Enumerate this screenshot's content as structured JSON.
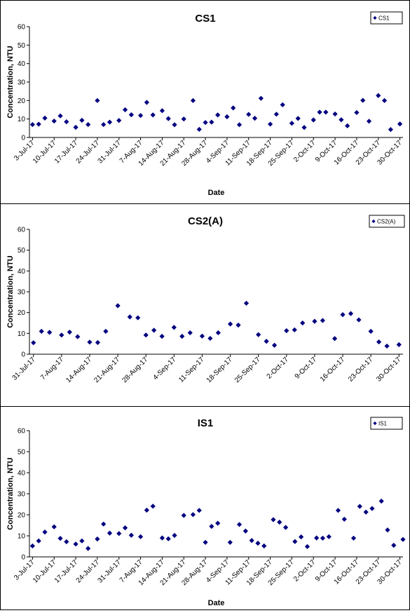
{
  "colors": {
    "marker": "#000080",
    "axis": "#000000",
    "grid": "#c0c0c0",
    "background": "#ffffff"
  },
  "chart_data": [
    {
      "type": "scatter",
      "title": "CS1",
      "xlabel": "Date",
      "ylabel": "Concentration, NTU",
      "ylim": [
        0,
        60
      ],
      "yticks": [
        "0",
        "10",
        "20",
        "30",
        "40",
        "50",
        "60"
      ],
      "xlim": [
        "2017-07-02",
        "2017-10-31"
      ],
      "xticks": [
        {
          "date": "2017-07-03",
          "label": "3-Jul-17"
        },
        {
          "date": "2017-07-10",
          "label": "10-Jul-17"
        },
        {
          "date": "2017-07-17",
          "label": "17-Jul-17"
        },
        {
          "date": "2017-07-24",
          "label": "24-Jul-17"
        },
        {
          "date": "2017-07-31",
          "label": "31-Jul-17"
        },
        {
          "date": "2017-08-07",
          "label": "7-Aug-17"
        },
        {
          "date": "2017-08-14",
          "label": "14-Aug-17"
        },
        {
          "date": "2017-08-21",
          "label": "21-Aug-17"
        },
        {
          "date": "2017-08-28",
          "label": "28-Aug-17"
        },
        {
          "date": "2017-09-04",
          "label": "4-Sep-17"
        },
        {
          "date": "2017-09-11",
          "label": "11-Sep-17"
        },
        {
          "date": "2017-09-18",
          "label": "18-Sep-17"
        },
        {
          "date": "2017-09-25",
          "label": "25-Sep-17"
        },
        {
          "date": "2017-10-02",
          "label": "2-Oct-17"
        },
        {
          "date": "2017-10-09",
          "label": "9-Oct-17"
        },
        {
          "date": "2017-10-16",
          "label": "16-Oct-17"
        },
        {
          "date": "2017-10-23",
          "label": "23-Oct-17"
        },
        {
          "date": "2017-10-30",
          "label": "30-Oct-17"
        }
      ],
      "legend": {
        "position": "top-right",
        "entries": [
          "CS1"
        ]
      },
      "grid": false,
      "series": [
        {
          "name": "CS1",
          "points": [
            {
              "x": "2017-07-03",
              "y": 7
            },
            {
              "x": "2017-07-05",
              "y": 7.2
            },
            {
              "x": "2017-07-07",
              "y": 10.5
            },
            {
              "x": "2017-07-10",
              "y": 8.9
            },
            {
              "x": "2017-07-12",
              "y": 11.7
            },
            {
              "x": "2017-07-14",
              "y": 8.5
            },
            {
              "x": "2017-07-17",
              "y": 5.5
            },
            {
              "x": "2017-07-19",
              "y": 9.3
            },
            {
              "x": "2017-07-21",
              "y": 7
            },
            {
              "x": "2017-07-24",
              "y": 20
            },
            {
              "x": "2017-07-26",
              "y": 7
            },
            {
              "x": "2017-07-28",
              "y": 8.3
            },
            {
              "x": "2017-07-31",
              "y": 9.2
            },
            {
              "x": "2017-08-02",
              "y": 15
            },
            {
              "x": "2017-08-04",
              "y": 12.3
            },
            {
              "x": "2017-08-07",
              "y": 11.9
            },
            {
              "x": "2017-08-09",
              "y": 19
            },
            {
              "x": "2017-08-11",
              "y": 12.2
            },
            {
              "x": "2017-08-14",
              "y": 14.5
            },
            {
              "x": "2017-08-16",
              "y": 10.2
            },
            {
              "x": "2017-08-18",
              "y": 6.9
            },
            {
              "x": "2017-08-21",
              "y": 10
            },
            {
              "x": "2017-08-24",
              "y": 20
            },
            {
              "x": "2017-08-26",
              "y": 4.4
            },
            {
              "x": "2017-08-28",
              "y": 8.1
            },
            {
              "x": "2017-08-30",
              "y": 8.3
            },
            {
              "x": "2017-09-01",
              "y": 12.2
            },
            {
              "x": "2017-09-04",
              "y": 11.2
            },
            {
              "x": "2017-09-06",
              "y": 16
            },
            {
              "x": "2017-09-08",
              "y": 6.9
            },
            {
              "x": "2017-09-11",
              "y": 12.5
            },
            {
              "x": "2017-09-13",
              "y": 10.4
            },
            {
              "x": "2017-09-15",
              "y": 21.2
            },
            {
              "x": "2017-09-18",
              "y": 7.2
            },
            {
              "x": "2017-09-20",
              "y": 12.6
            },
            {
              "x": "2017-09-22",
              "y": 17.7
            },
            {
              "x": "2017-09-25",
              "y": 7.7
            },
            {
              "x": "2017-09-27",
              "y": 10.3
            },
            {
              "x": "2017-09-29",
              "y": 5.4
            },
            {
              "x": "2017-10-02",
              "y": 9.5
            },
            {
              "x": "2017-10-04",
              "y": 13.7
            },
            {
              "x": "2017-10-06",
              "y": 13.7
            },
            {
              "x": "2017-10-09",
              "y": 12.7
            },
            {
              "x": "2017-10-11",
              "y": 9.6
            },
            {
              "x": "2017-10-13",
              "y": 6.3
            },
            {
              "x": "2017-10-16",
              "y": 13.5
            },
            {
              "x": "2017-10-18",
              "y": 20.1
            },
            {
              "x": "2017-10-20",
              "y": 8.8
            },
            {
              "x": "2017-10-23",
              "y": 22.7
            },
            {
              "x": "2017-10-25",
              "y": 20
            },
            {
              "x": "2017-10-27",
              "y": 4.3
            },
            {
              "x": "2017-10-30",
              "y": 7.3
            }
          ]
        }
      ]
    },
    {
      "type": "scatter",
      "title": "CS2(A)",
      "xlabel": "",
      "ylabel": "Concentration, NTU",
      "ylim": [
        0,
        60
      ],
      "yticks": [
        "0",
        "10",
        "20",
        "30",
        "40",
        "50",
        "60"
      ],
      "xlim": [
        "2017-07-30",
        "2017-10-31"
      ],
      "xticks": [
        {
          "date": "2017-07-31",
          "label": "31-Jul-17"
        },
        {
          "date": "2017-08-07",
          "label": "7-Aug-17"
        },
        {
          "date": "2017-08-14",
          "label": "14-Aug-17"
        },
        {
          "date": "2017-08-21",
          "label": "21-Aug-17"
        },
        {
          "date": "2017-08-28",
          "label": "28-Aug-17"
        },
        {
          "date": "2017-09-04",
          "label": "4-Sep-17"
        },
        {
          "date": "2017-09-11",
          "label": "11-Sep-17"
        },
        {
          "date": "2017-09-18",
          "label": "18-Sep-17"
        },
        {
          "date": "2017-09-25",
          "label": "25-Sep-17"
        },
        {
          "date": "2017-10-02",
          "label": "2-Oct-17"
        },
        {
          "date": "2017-10-09",
          "label": "9-Oct-17"
        },
        {
          "date": "2017-10-16",
          "label": "16-Oct-17"
        },
        {
          "date": "2017-10-23",
          "label": "23-Oct-17"
        },
        {
          "date": "2017-10-30",
          "label": "30-Oct-17"
        }
      ],
      "legend": {
        "position": "top-right",
        "entries": [
          "CS2(A)"
        ]
      },
      "grid": false,
      "series": [
        {
          "name": "CS2(A)",
          "points": [
            {
              "x": "2017-07-31",
              "y": 5.5
            },
            {
              "x": "2017-08-02",
              "y": 11
            },
            {
              "x": "2017-08-04",
              "y": 10.5
            },
            {
              "x": "2017-08-07",
              "y": 9.2
            },
            {
              "x": "2017-08-09",
              "y": 10.6
            },
            {
              "x": "2017-08-11",
              "y": 8.4
            },
            {
              "x": "2017-08-14",
              "y": 5.8
            },
            {
              "x": "2017-08-16",
              "y": 5.6
            },
            {
              "x": "2017-08-18",
              "y": 11
            },
            {
              "x": "2017-08-21",
              "y": 23.3
            },
            {
              "x": "2017-08-24",
              "y": 17.9
            },
            {
              "x": "2017-08-26",
              "y": 17.5
            },
            {
              "x": "2017-08-28",
              "y": 9.2
            },
            {
              "x": "2017-08-30",
              "y": 11.5
            },
            {
              "x": "2017-09-01",
              "y": 8.6
            },
            {
              "x": "2017-09-04",
              "y": 12.9
            },
            {
              "x": "2017-09-06",
              "y": 8.6
            },
            {
              "x": "2017-09-08",
              "y": 10.3
            },
            {
              "x": "2017-09-11",
              "y": 8.7
            },
            {
              "x": "2017-09-13",
              "y": 7.6
            },
            {
              "x": "2017-09-15",
              "y": 10.3
            },
            {
              "x": "2017-09-18",
              "y": 14.5
            },
            {
              "x": "2017-09-20",
              "y": 14
            },
            {
              "x": "2017-09-22",
              "y": 24.5
            },
            {
              "x": "2017-09-25",
              "y": 9.4
            },
            {
              "x": "2017-09-27",
              "y": 6.2
            },
            {
              "x": "2017-09-29",
              "y": 4.3
            },
            {
              "x": "2017-10-02",
              "y": 11.3
            },
            {
              "x": "2017-10-04",
              "y": 11.7
            },
            {
              "x": "2017-10-06",
              "y": 15
            },
            {
              "x": "2017-10-09",
              "y": 15.8
            },
            {
              "x": "2017-10-11",
              "y": 16.2
            },
            {
              "x": "2017-10-14",
              "y": 7.5
            },
            {
              "x": "2017-10-16",
              "y": 19
            },
            {
              "x": "2017-10-18",
              "y": 19.5
            },
            {
              "x": "2017-10-20",
              "y": 16.5
            },
            {
              "x": "2017-10-23",
              "y": 11
            },
            {
              "x": "2017-10-25",
              "y": 5.9
            },
            {
              "x": "2017-10-27",
              "y": 3.9
            },
            {
              "x": "2017-10-30",
              "y": 4.6
            }
          ]
        }
      ]
    },
    {
      "type": "scatter",
      "title": "IS1",
      "xlabel": "Date",
      "ylabel": "Concentration, NTU",
      "ylim": [
        0,
        60
      ],
      "yticks": [
        "0",
        "10",
        "20",
        "30",
        "40",
        "50",
        "60"
      ],
      "xlim": [
        "2017-07-02",
        "2017-10-31"
      ],
      "xticks": [
        {
          "date": "2017-07-03",
          "label": "3-Jul-17"
        },
        {
          "date": "2017-07-10",
          "label": "10-Jul-17"
        },
        {
          "date": "2017-07-17",
          "label": "17-Jul-17"
        },
        {
          "date": "2017-07-24",
          "label": "24-Jul-17"
        },
        {
          "date": "2017-07-31",
          "label": "31-Jul-17"
        },
        {
          "date": "2017-08-07",
          "label": "7-Aug-17"
        },
        {
          "date": "2017-08-14",
          "label": "14-Aug-17"
        },
        {
          "date": "2017-08-21",
          "label": "21-Aug-17"
        },
        {
          "date": "2017-08-28",
          "label": "28-Aug-17"
        },
        {
          "date": "2017-09-04",
          "label": "4-Sep-17"
        },
        {
          "date": "2017-09-11",
          "label": "11-Sep-17"
        },
        {
          "date": "2017-09-18",
          "label": "18-Sep-17"
        },
        {
          "date": "2017-09-25",
          "label": "25-Sep-17"
        },
        {
          "date": "2017-10-02",
          "label": "2-Oct-17"
        },
        {
          "date": "2017-10-09",
          "label": "9-Oct-17"
        },
        {
          "date": "2017-10-16",
          "label": "16-Oct-17"
        },
        {
          "date": "2017-10-23",
          "label": "23-Oct-17"
        },
        {
          "date": "2017-10-30",
          "label": "30-Oct-17"
        }
      ],
      "legend": {
        "position": "top-right",
        "entries": [
          "IS1"
        ]
      },
      "grid": false,
      "series": [
        {
          "name": "IS1",
          "points": [
            {
              "x": "2017-07-03",
              "y": 5.2
            },
            {
              "x": "2017-07-05",
              "y": 7.6
            },
            {
              "x": "2017-07-07",
              "y": 11.8
            },
            {
              "x": "2017-07-10",
              "y": 14.3
            },
            {
              "x": "2017-07-12",
              "y": 8.8
            },
            {
              "x": "2017-07-14",
              "y": 7.2
            },
            {
              "x": "2017-07-17",
              "y": 6.1
            },
            {
              "x": "2017-07-19",
              "y": 7.6
            },
            {
              "x": "2017-07-21",
              "y": 4
            },
            {
              "x": "2017-07-24",
              "y": 8.5
            },
            {
              "x": "2017-07-26",
              "y": 15.6
            },
            {
              "x": "2017-07-28",
              "y": 11.3
            },
            {
              "x": "2017-07-31",
              "y": 11.1
            },
            {
              "x": "2017-08-02",
              "y": 13.8
            },
            {
              "x": "2017-08-04",
              "y": 10.3
            },
            {
              "x": "2017-08-07",
              "y": 9.6
            },
            {
              "x": "2017-08-09",
              "y": 22.2
            },
            {
              "x": "2017-08-11",
              "y": 24.1
            },
            {
              "x": "2017-08-14",
              "y": 9
            },
            {
              "x": "2017-08-16",
              "y": 8.6
            },
            {
              "x": "2017-08-18",
              "y": 10.2
            },
            {
              "x": "2017-08-21",
              "y": 19.7
            },
            {
              "x": "2017-08-24",
              "y": 20.1
            },
            {
              "x": "2017-08-26",
              "y": 22.1
            },
            {
              "x": "2017-08-28",
              "y": 6.9
            },
            {
              "x": "2017-08-30",
              "y": 14.5
            },
            {
              "x": "2017-09-01",
              "y": 16
            },
            {
              "x": "2017-09-05",
              "y": 6.9
            },
            {
              "x": "2017-09-08",
              "y": 15.4
            },
            {
              "x": "2017-09-10",
              "y": 12.3
            },
            {
              "x": "2017-09-12",
              "y": 7.8
            },
            {
              "x": "2017-09-14",
              "y": 6.5
            },
            {
              "x": "2017-09-16",
              "y": 5.2
            },
            {
              "x": "2017-09-19",
              "y": 17.7
            },
            {
              "x": "2017-09-21",
              "y": 16.5
            },
            {
              "x": "2017-09-23",
              "y": 14
            },
            {
              "x": "2017-09-26",
              "y": 7.3
            },
            {
              "x": "2017-09-28",
              "y": 9.5
            },
            {
              "x": "2017-09-30",
              "y": 4.9
            },
            {
              "x": "2017-10-03",
              "y": 9
            },
            {
              "x": "2017-10-05",
              "y": 8.9
            },
            {
              "x": "2017-10-07",
              "y": 9.6
            },
            {
              "x": "2017-10-10",
              "y": 22.1
            },
            {
              "x": "2017-10-12",
              "y": 17.9
            },
            {
              "x": "2017-10-15",
              "y": 8.9
            },
            {
              "x": "2017-10-17",
              "y": 24
            },
            {
              "x": "2017-10-19",
              "y": 21.3
            },
            {
              "x": "2017-10-21",
              "y": 23
            },
            {
              "x": "2017-10-24",
              "y": 26.5
            },
            {
              "x": "2017-10-26",
              "y": 12.8
            },
            {
              "x": "2017-10-28",
              "y": 5.5
            },
            {
              "x": "2017-10-31",
              "y": 8.3
            }
          ]
        }
      ]
    }
  ]
}
